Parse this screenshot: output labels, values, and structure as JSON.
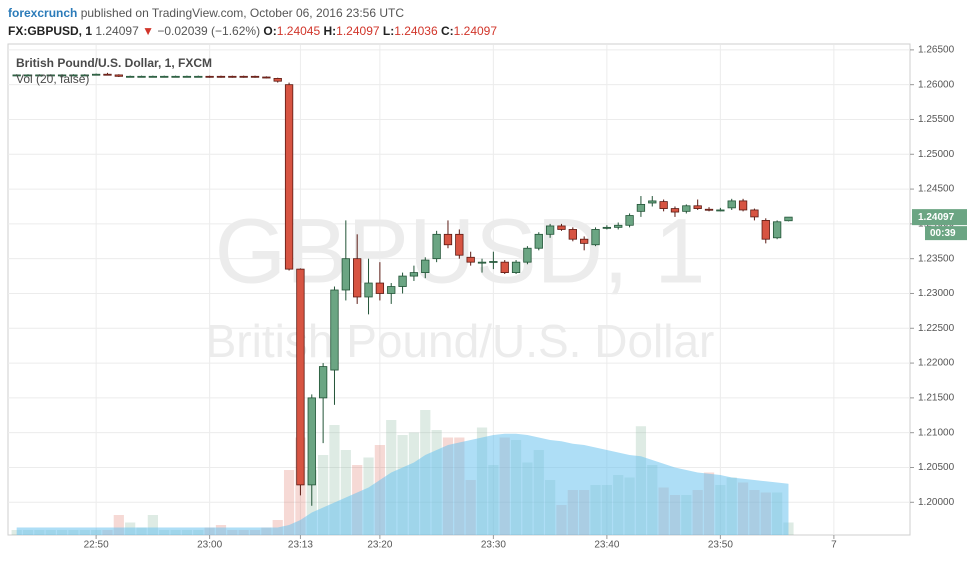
{
  "header": {
    "author": "forexcrunch",
    "published": "published on TradingView.com, October 06, 2016 23:56 UTC",
    "symbol": "FX:GBPUSD, 1",
    "price": 1.24097,
    "arrow": "▼",
    "change": "−0.02039 (−1.62%)",
    "ohlc": [
      {
        "label": "O:",
        "value": 1.24045
      },
      {
        "label": "H:",
        "value": 1.24097
      },
      {
        "label": "L:",
        "value": 1.24036
      },
      {
        "label": "C:",
        "value": 1.24097
      }
    ]
  },
  "chart_data": {
    "type": "candlestick",
    "legend": [
      "British Pound/U.S. Dollar, 1, FXCM",
      "Vol (20, false)"
    ],
    "watermark": [
      "GBPUSD, 1",
      "British Pound/U.S. Dollar"
    ],
    "categories": [
      null,
      null,
      null,
      null,
      null,
      null,
      null,
      "22:50",
      null,
      null,
      null,
      null,
      null,
      null,
      null,
      null,
      null,
      "23:00",
      null,
      null,
      null,
      null,
      null,
      null,
      null,
      "23:13",
      null,
      null,
      null,
      null,
      null,
      null,
      "23:20",
      null,
      null,
      null,
      null,
      null,
      null,
      null,
      null,
      null,
      "23:30",
      null,
      null,
      null,
      null,
      null,
      null,
      null,
      null,
      null,
      "23:40",
      null,
      null,
      null,
      null,
      null,
      null,
      null,
      null,
      null,
      "23:50",
      null,
      null,
      null,
      null,
      null,
      null,
      null,
      null,
      null,
      "7",
      null,
      null,
      null,
      null,
      null,
      null
    ],
    "open": [
      1.2614,
      1.2614,
      1.2614,
      1.2614,
      1.2614,
      1.2614,
      1.2614,
      1.2615,
      1.2615,
      1.2614,
      1.2612,
      1.2612,
      1.2612,
      1.2612,
      1.2612,
      1.2612,
      1.2612,
      1.2612,
      1.2612,
      1.2612,
      1.2612,
      1.2612,
      1.2611,
      1.2609,
      1.26,
      1.2335,
      1.2025,
      1.215,
      1.219,
      1.2305,
      1.235,
      1.2295,
      1.2315,
      1.23,
      1.231,
      1.2325,
      1.233,
      1.235,
      1.2385,
      1.2385,
      1.2352,
      1.2345,
      1.2345,
      1.2345,
      1.233,
      1.2345,
      1.2365,
      1.2385,
      1.2397,
      1.2392,
      1.2378,
      1.237,
      1.2394,
      1.2395,
      1.2398,
      1.2418,
      1.243,
      1.2432,
      1.2422,
      1.2418,
      1.2426,
      1.2421,
      1.242,
      1.2423,
      1.2433,
      1.242,
      1.2405,
      1.238,
      1.24045,
      null,
      null,
      null,
      null,
      null,
      null,
      null,
      null,
      null,
      null
    ],
    "high": [
      1.2615,
      1.2615,
      1.2615,
      1.2615,
      1.2615,
      1.2615,
      1.2615,
      1.2616,
      1.2617,
      1.2615,
      1.2613,
      1.2613,
      1.2613,
      1.2613,
      1.2613,
      1.2613,
      1.2613,
      1.2613,
      1.2613,
      1.2613,
      1.2613,
      1.2613,
      1.2612,
      1.261,
      1.2603,
      1.2336,
      1.2155,
      1.22,
      1.231,
      1.2405,
      1.2385,
      1.235,
      1.2345,
      1.2315,
      1.233,
      1.234,
      1.2352,
      1.239,
      1.2405,
      1.2392,
      1.236,
      1.235,
      1.236,
      1.2348,
      1.2348,
      1.2368,
      1.2388,
      1.24,
      1.24,
      1.2395,
      1.2382,
      1.2395,
      1.2398,
      1.2402,
      1.2415,
      1.244,
      1.244,
      1.2435,
      1.2425,
      1.2428,
      1.2435,
      1.2424,
      1.2423,
      1.2436,
      1.2436,
      1.2422,
      1.2408,
      1.2405,
      1.24097,
      null,
      null,
      null,
      null,
      null,
      null,
      null,
      null,
      null,
      null
    ],
    "low": [
      1.2613,
      1.2613,
      1.2613,
      1.2613,
      1.2613,
      1.2613,
      1.2613,
      1.2614,
      1.2614,
      1.2611,
      1.2611,
      1.2611,
      1.2611,
      1.2611,
      1.2611,
      1.2611,
      1.2611,
      1.261,
      1.261,
      1.261,
      1.261,
      1.261,
      1.2609,
      1.2603,
      1.2333,
      1.201,
      1.1995,
      1.2085,
      1.214,
      1.229,
      1.2285,
      1.227,
      1.229,
      1.2285,
      1.23,
      1.2318,
      1.2322,
      1.2345,
      1.2365,
      1.235,
      1.234,
      1.233,
      1.2335,
      1.2328,
      1.2328,
      1.2342,
      1.2362,
      1.238,
      1.239,
      1.2375,
      1.2362,
      1.2368,
      1.2392,
      1.2392,
      1.2395,
      1.241,
      1.2425,
      1.2418,
      1.241,
      1.2415,
      1.242,
      1.2418,
      1.2418,
      1.242,
      1.2418,
      1.2405,
      1.2372,
      1.2378,
      1.24036,
      null,
      null,
      null,
      null,
      null,
      null,
      null,
      null,
      null,
      null
    ],
    "close": [
      1.2614,
      1.2614,
      1.2614,
      1.2614,
      1.2614,
      1.2614,
      1.2614,
      1.2615,
      1.2614,
      1.2612,
      1.2612,
      1.2612,
      1.2612,
      1.2612,
      1.2612,
      1.2612,
      1.2612,
      1.2611,
      1.2611,
      1.2611,
      1.2611,
      1.2611,
      1.261,
      1.2605,
      1.2335,
      1.2025,
      1.215,
      1.2195,
      1.2305,
      1.235,
      1.2295,
      1.2315,
      1.23,
      1.231,
      1.2325,
      1.233,
      1.2348,
      1.2385,
      1.237,
      1.2355,
      1.2345,
      1.2345,
      1.2346,
      1.233,
      1.2345,
      1.2365,
      1.2385,
      1.2397,
      1.2392,
      1.2378,
      1.2372,
      1.2392,
      1.2395,
      1.2398,
      1.2412,
      1.2428,
      1.2433,
      1.2422,
      1.2417,
      1.2426,
      1.2422,
      1.242,
      1.242,
      1.2433,
      1.242,
      1.241,
      1.2378,
      1.2403,
      1.24097,
      null,
      null,
      null,
      null,
      null,
      null,
      null,
      null,
      null,
      null
    ],
    "volume": [
      4,
      4,
      4,
      4,
      4,
      4,
      4,
      4,
      4,
      16,
      10,
      6,
      16,
      4,
      4,
      4,
      4,
      6,
      8,
      4,
      4,
      4,
      6,
      12,
      52,
      78,
      52,
      64,
      88,
      68,
      56,
      62,
      72,
      92,
      80,
      82,
      100,
      84,
      78,
      78,
      44,
      86,
      56,
      78,
      76,
      58,
      68,
      44,
      24,
      36,
      36,
      40,
      40,
      48,
      46,
      87,
      56,
      38,
      32,
      32,
      36,
      50,
      40,
      46,
      42,
      36,
      34,
      34,
      10,
      null,
      null,
      null,
      null,
      null,
      null,
      null,
      null,
      null,
      null
    ],
    "volume_ma": [
      6,
      6,
      6,
      6,
      6,
      6,
      6,
      6,
      6,
      6,
      6,
      6,
      6,
      6,
      6,
      6,
      6,
      6,
      6,
      6,
      6,
      6,
      6,
      6,
      8,
      12,
      18,
      22,
      26,
      30,
      34,
      38,
      44,
      50,
      54,
      58,
      64,
      68,
      72,
      74,
      76,
      78,
      80,
      81,
      81,
      80,
      78,
      76,
      75,
      73,
      72,
      70,
      68,
      66,
      64,
      63,
      60,
      57,
      54,
      52,
      50,
      49,
      48,
      46,
      45,
      44,
      43,
      42,
      41,
      null,
      null,
      null,
      null,
      null,
      null,
      null,
      null,
      null,
      null
    ],
    "up_color": "#6ba583",
    "down_color": "#d75442",
    "volume_ma_color": "#6cc3ee",
    "ylim": [
      1.1953,
      1.2657
    ],
    "yticks": [
      {
        "value": 1.2,
        "label": "1.20000"
      },
      {
        "value": 1.205,
        "label": "1.20500"
      },
      {
        "value": 1.21,
        "label": "1.21000"
      },
      {
        "value": 1.215,
        "label": "1.21500"
      },
      {
        "value": 1.22,
        "label": "1.22000"
      },
      {
        "value": 1.225,
        "label": "1.22500"
      },
      {
        "value": 1.23,
        "label": "1.23000"
      },
      {
        "value": 1.235,
        "label": "1.23500"
      },
      {
        "value": 1.24,
        "label": "1.24000"
      },
      {
        "value": 1.245,
        "label": "1.24500"
      },
      {
        "value": 1.25,
        "label": "1.25000"
      },
      {
        "value": 1.255,
        "label": "1.25500"
      },
      {
        "value": 1.26,
        "label": "1.26000"
      },
      {
        "value": 1.265,
        "label": "1.26500"
      }
    ],
    "grid": true,
    "last_price": {
      "value": 1.24097,
      "label": "1.24097"
    },
    "countdown": "00:39"
  }
}
